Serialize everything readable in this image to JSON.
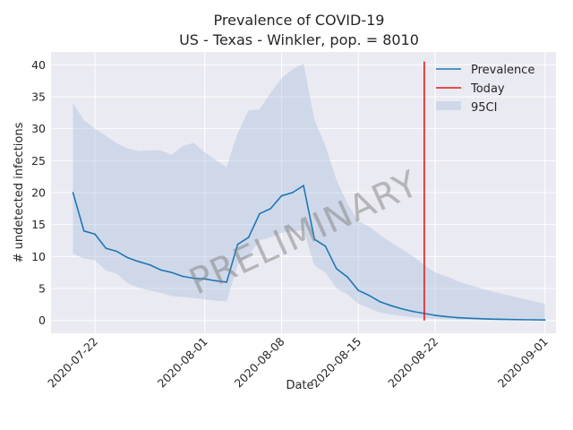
{
  "chart_data": {
    "type": "line",
    "title": "Prevalence of COVID-19",
    "subtitle": "US - Texas - Winkler, pop. = 8010",
    "xlabel": "Date",
    "ylabel": "# undetected infections",
    "xlim": [
      "2020-07-18",
      "2020-09-02"
    ],
    "ylim": [
      -2,
      42
    ],
    "x_ticks": [
      "2020-07-22",
      "2020-08-01",
      "2020-08-08",
      "2020-08-15",
      "2020-08-22",
      "2020-09-01"
    ],
    "y_ticks": [
      0,
      5,
      10,
      15,
      20,
      25,
      30,
      35,
      40
    ],
    "grid": true,
    "legend_position": "top-right",
    "watermark": "PRELIMINARY",
    "today": "2020-08-21",
    "today_span": [
      0,
      40.5
    ],
    "dates": [
      "2020-07-20",
      "2020-07-21",
      "2020-07-22",
      "2020-07-23",
      "2020-07-24",
      "2020-07-25",
      "2020-07-26",
      "2020-07-27",
      "2020-07-28",
      "2020-07-29",
      "2020-07-30",
      "2020-07-31",
      "2020-08-01",
      "2020-08-02",
      "2020-08-03",
      "2020-08-04",
      "2020-08-05",
      "2020-08-06",
      "2020-08-07",
      "2020-08-08",
      "2020-08-09",
      "2020-08-10",
      "2020-08-11",
      "2020-08-12",
      "2020-08-13",
      "2020-08-14",
      "2020-08-15",
      "2020-08-16",
      "2020-08-17",
      "2020-08-18",
      "2020-08-19",
      "2020-08-20",
      "2020-08-21",
      "2020-08-22",
      "2020-08-23",
      "2020-08-24",
      "2020-08-25",
      "2020-08-26",
      "2020-08-27",
      "2020-08-28",
      "2020-08-29",
      "2020-08-30",
      "2020-08-31",
      "2020-09-01"
    ],
    "series": [
      {
        "name": "Prevalence",
        "color": "#1f77b4",
        "values": [
          20.0,
          14.0,
          13.5,
          11.3,
          10.8,
          9.8,
          9.2,
          8.7,
          7.9,
          7.5,
          6.9,
          6.6,
          6.5,
          6.2,
          6.0,
          11.9,
          13.0,
          16.7,
          17.5,
          19.5,
          20.0,
          21.1,
          12.7,
          11.6,
          8.1,
          6.8,
          4.7,
          3.9,
          2.9,
          2.3,
          1.8,
          1.4,
          1.1,
          0.8,
          0.6,
          0.45,
          0.35,
          0.28,
          0.22,
          0.18,
          0.15,
          0.12,
          0.1,
          0.08
        ]
      },
      {
        "name": "Today",
        "color": "#e41a1c"
      },
      {
        "name": "95CI",
        "color": "#b0c4de",
        "upper": [
          34.0,
          31.3,
          30.0,
          28.9,
          27.7,
          26.9,
          26.5,
          26.6,
          26.6,
          25.9,
          27.3,
          27.8,
          26.3,
          25.1,
          24.0,
          29.3,
          32.9,
          33.0,
          35.6,
          37.9,
          39.3,
          40.2,
          31.4,
          27.3,
          22.0,
          18.3,
          15.5,
          14.7,
          13.3,
          12.2,
          11.1,
          10.0,
          8.7,
          7.5,
          6.9,
          6.2,
          5.6,
          5.1,
          4.6,
          4.2,
          3.8,
          3.4,
          3.0,
          2.6
        ],
        "lower": [
          10.4,
          9.7,
          9.4,
          7.8,
          7.3,
          5.8,
          5.1,
          4.7,
          4.3,
          3.8,
          3.7,
          3.5,
          3.3,
          3.1,
          3.0,
          8.7,
          10.2,
          12.5,
          13.0,
          13.7,
          13.9,
          14.1,
          8.6,
          7.5,
          5.0,
          4.1,
          2.6,
          1.9,
          1.2,
          0.9,
          0.7,
          0.5,
          0.35,
          0.25,
          0.18,
          0.12,
          0.08,
          0.05,
          0.04,
          0.03,
          0.02,
          0.01,
          0.01,
          0.0
        ]
      }
    ]
  }
}
